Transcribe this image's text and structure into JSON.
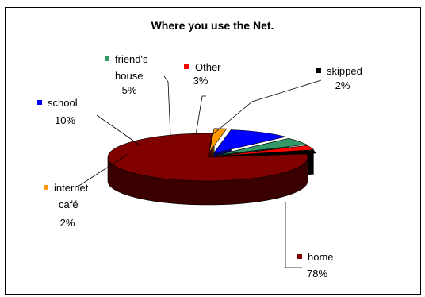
{
  "chart_data": {
    "type": "pie",
    "style": "3d-exploded",
    "title": "Where you use the Net.",
    "slices": [
      {
        "label": "home",
        "value": 78,
        "pct_label": "78%",
        "color": "#800000"
      },
      {
        "label": "internet café",
        "value": 2,
        "pct_label": "2%",
        "color": "#ff9900"
      },
      {
        "label": "school",
        "value": 10,
        "pct_label": "10%",
        "color": "#0000ff"
      },
      {
        "label": "friend's house",
        "value": 5,
        "pct_label": "5%",
        "color": "#339966"
      },
      {
        "label": "Other",
        "value": 3,
        "pct_label": "3%",
        "color": "#ff0000"
      },
      {
        "label": "skipped",
        "value": 2,
        "pct_label": "2%",
        "color": "#000000"
      }
    ]
  }
}
